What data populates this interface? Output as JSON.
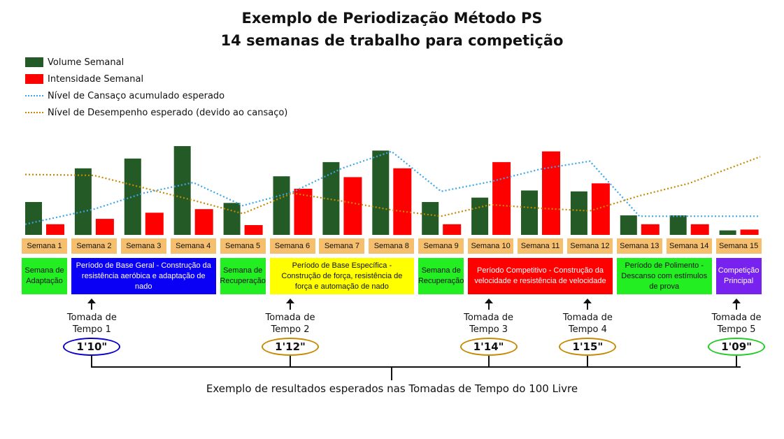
{
  "title_line1": "Exemplo de Periodização Método PS",
  "title_line2": "14 semanas de trabalho para competição",
  "legend": {
    "volume": "Volume Semanal",
    "intensity": "Intensidade Semanal",
    "fatigue": "Nível de Cansaço acumulado esperado",
    "performance": "Nível de Desempenho esperado (devido ao cansaço)"
  },
  "colors": {
    "volume": "#235a25",
    "intensity": "#ff0000",
    "fatigue": "#3ba7ea",
    "performance": "#c58a00",
    "week_box": "#f5bf6e"
  },
  "chart_data": {
    "type": "bar",
    "categories": [
      "Semana 1",
      "Semana 2",
      "Semana 3",
      "Semana 4",
      "Semana 5",
      "Semana 6",
      "Semana 7",
      "Semana 8",
      "Semana 9",
      "Semana 10",
      "Semana 11",
      "Semana 12",
      "Semana 13",
      "Semana 14",
      "Semana 15"
    ],
    "ylim": [
      0,
      100
    ],
    "series": [
      {
        "name": "Volume Semanal",
        "kind": "bar",
        "values": [
          37,
          75,
          86,
          100,
          36,
          66,
          82,
          95,
          37,
          42,
          50,
          49,
          22,
          22,
          5
        ]
      },
      {
        "name": "Intensidade Semanal",
        "kind": "bar",
        "values": [
          12,
          18,
          25,
          29,
          11,
          52,
          65,
          75,
          12,
          82,
          94,
          58,
          12,
          12,
          6
        ]
      },
      {
        "name": "Nível de Cansaço acumulado esperado",
        "kind": "line",
        "values": [
          12,
          29,
          47,
          59,
          33,
          48,
          75,
          94,
          49,
          60,
          74,
          83,
          21,
          21,
          21
        ]
      },
      {
        "name": "Nível de Desempenho esperado (devido ao cansaço)",
        "kind": "line",
        "values": [
          68,
          67,
          53,
          39,
          24,
          47,
          38,
          28,
          21,
          34,
          30,
          27,
          44,
          58,
          88
        ]
      }
    ]
  },
  "phases": [
    {
      "label": "Semana de Adaptação",
      "color": "#22ee22",
      "text_color": "#111111",
      "start": 0,
      "end": 0
    },
    {
      "label": "Período de Base Geral - Construção da resistência aeróbica e adaptação de nado",
      "color": "#0a00f5",
      "text_color": "#ffffff",
      "start": 1,
      "end": 3
    },
    {
      "label": "Semana de Recuperação",
      "color": "#22ee22",
      "text_color": "#111111",
      "start": 4,
      "end": 4
    },
    {
      "label": "Período de Base Específica - Construção de força, resistência de força e automação de nado",
      "color": "#ffff00",
      "text_color": "#111111",
      "start": 5,
      "end": 7
    },
    {
      "label": "Semana de Recuperação",
      "color": "#22ee22",
      "text_color": "#111111",
      "start": 8,
      "end": 8
    },
    {
      "label": "Período Competitivo - Construção da velocidade e resistência de velocidade",
      "color": "#ff0000",
      "text_color": "#ffffff",
      "start": 9,
      "end": 11
    },
    {
      "label": "Período de Polimento - Descanso com estímulos de prova",
      "color": "#22ee22",
      "text_color": "#111111",
      "start": 12,
      "end": 13
    },
    {
      "label": "Competição Principal",
      "color": "#7722ee",
      "text_color": "#ffffff",
      "start": 14,
      "end": 14
    }
  ],
  "time_trials": [
    {
      "label": "Tomada de Tempo 1",
      "time": "1'10\"",
      "week": 1,
      "ring": "#0a00c8"
    },
    {
      "label": "Tomada de Tempo 2",
      "time": "1'12\"",
      "week": 5,
      "ring": "#c58a00"
    },
    {
      "label": "Tomada de Tempo 3",
      "time": "1'14\"",
      "week": 9,
      "ring": "#c58a00"
    },
    {
      "label": "Tomada de Tempo 4",
      "time": "1'15\"",
      "week": 11,
      "ring": "#c58a00"
    },
    {
      "label": "Tomada de Tempo 5",
      "time": "1'09\"",
      "week": 14,
      "ring": "#22cc22"
    }
  ],
  "caption": "Exemplo de resultados esperados nas Tomadas de Tempo do 100 Livre"
}
